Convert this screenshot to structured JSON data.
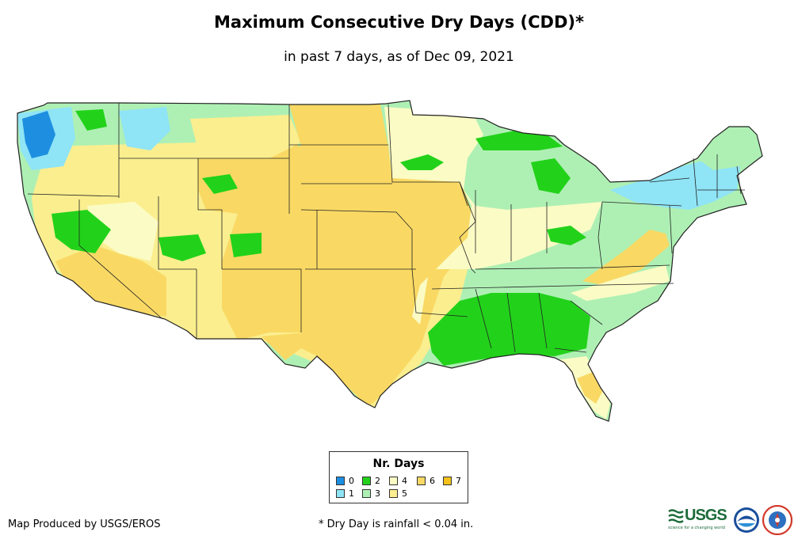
{
  "header": {
    "title": "Maximum Consecutive Dry Days (CDD)*",
    "subtitle": "in past 7 days, as of Dec 09, 2021"
  },
  "legend": {
    "title": "Nr. Days",
    "items": [
      {
        "label": "0",
        "color": "#1e8fe0"
      },
      {
        "label": "1",
        "color": "#8fe4f5"
      },
      {
        "label": "2",
        "color": "#22d21a"
      },
      {
        "label": "3",
        "color": "#aef0b4"
      },
      {
        "label": "4",
        "color": "#fbfbc5"
      },
      {
        "label": "5",
        "color": "#fbee8f"
      },
      {
        "label": "6",
        "color": "#f9d964"
      },
      {
        "label": "7",
        "color": "#f5c21c"
      }
    ]
  },
  "footer": {
    "credit": "Map Produced by USGS/EROS",
    "note": "* Dry Day is rainfall < 0.04 in."
  },
  "logos": {
    "usgs_text": "USGS",
    "usgs_tagline": "science for a changing world",
    "noaa_text": "NOAA",
    "nws_text": "NWS"
  }
}
